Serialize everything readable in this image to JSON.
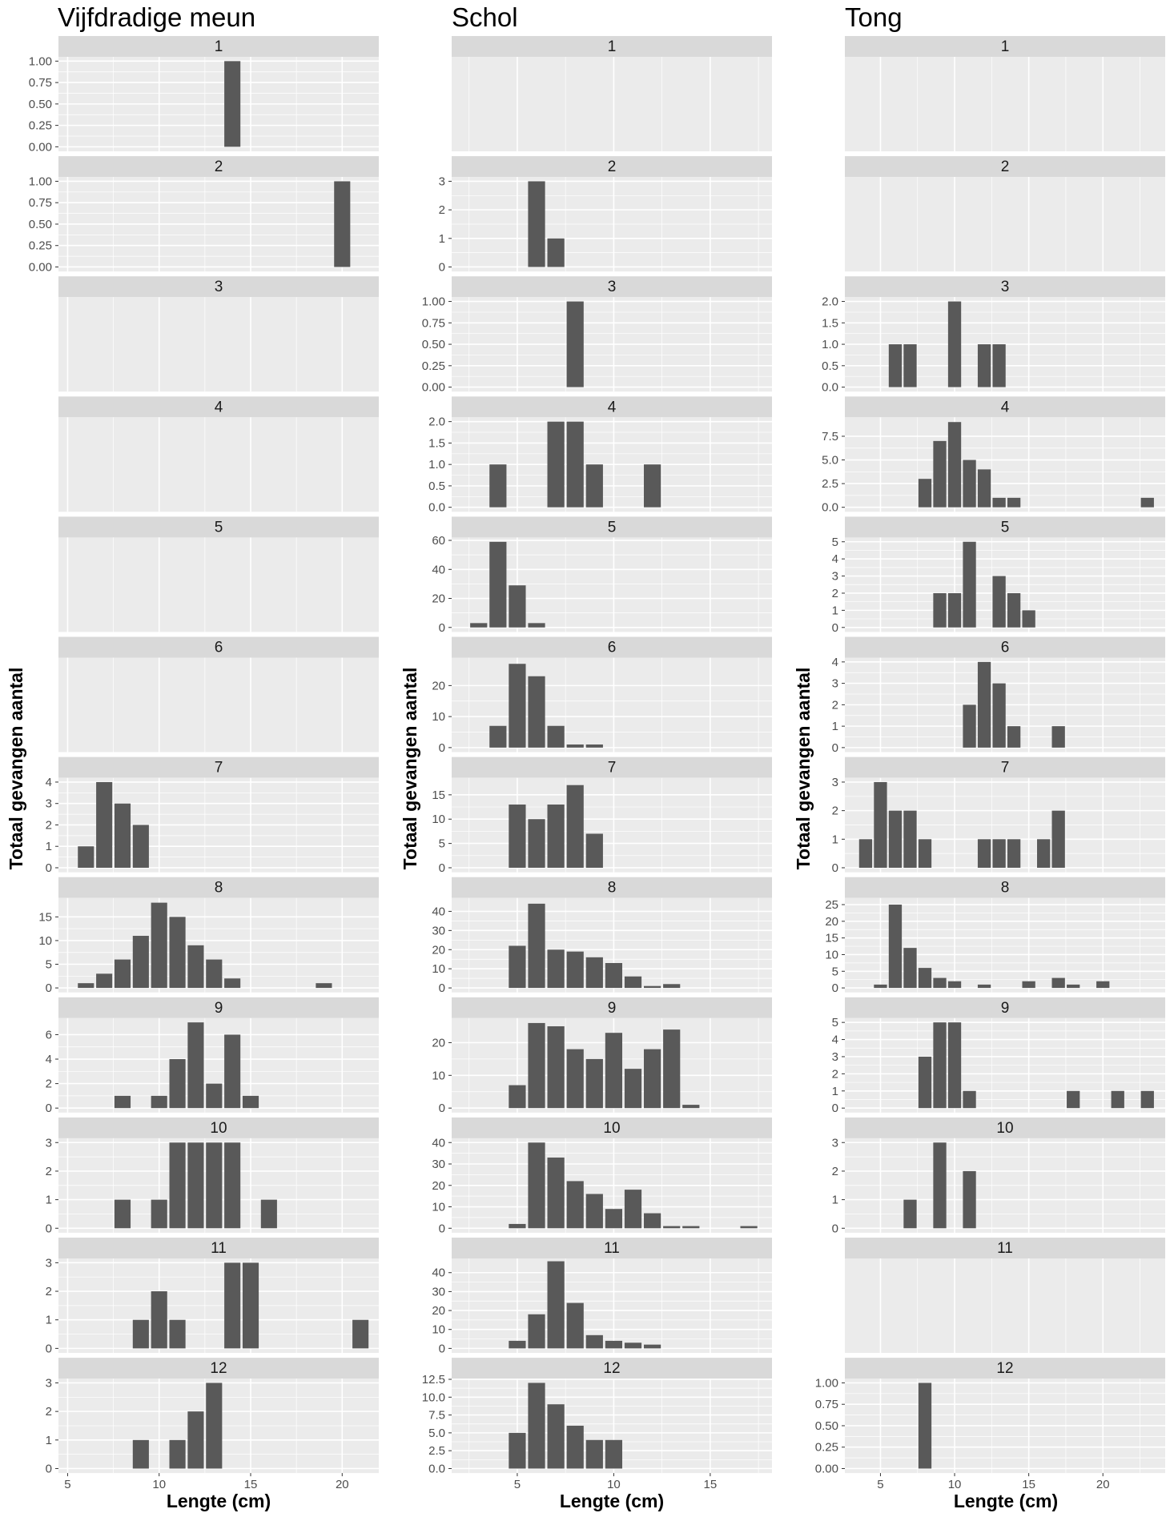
{
  "chart_data": [
    {
      "type": "bar",
      "title": "Vijfdradige meun",
      "xlabel": "Lengte (cm)",
      "ylabel": "Totaal gevangen aantal",
      "xlim": [
        4.5,
        22
      ],
      "xticks": [
        5,
        10,
        15,
        20
      ],
      "facets": [
        {
          "label": "1",
          "yticks": [
            "0.00",
            "0.25",
            "0.50",
            "0.75",
            "1.00"
          ],
          "ymax": 1.05,
          "x": [
            14
          ],
          "values": [
            1
          ]
        },
        {
          "label": "2",
          "yticks": [
            "0.00",
            "0.25",
            "0.50",
            "0.75",
            "1.00"
          ],
          "ymax": 1.05,
          "x": [
            20
          ],
          "values": [
            1
          ]
        },
        {
          "label": "3",
          "yticks": [],
          "ymax": 1,
          "x": [],
          "values": []
        },
        {
          "label": "4",
          "yticks": [],
          "ymax": 1,
          "x": [],
          "values": []
        },
        {
          "label": "5",
          "yticks": [],
          "ymax": 1,
          "x": [],
          "values": []
        },
        {
          "label": "6",
          "yticks": [],
          "ymax": 1,
          "x": [],
          "values": []
        },
        {
          "label": "7",
          "yticks": [
            "0",
            "1",
            "2",
            "3",
            "4"
          ],
          "ymax": 4.2,
          "x": [
            6,
            7,
            8,
            9
          ],
          "values": [
            1,
            4,
            3,
            2
          ]
        },
        {
          "label": "8",
          "yticks": [
            "0",
            "5",
            "10",
            "15"
          ],
          "ymax": 19,
          "x": [
            6,
            7,
            8,
            9,
            10,
            11,
            12,
            13,
            14,
            19
          ],
          "values": [
            1,
            3,
            6,
            11,
            18,
            15,
            9,
            6,
            2,
            1
          ]
        },
        {
          "label": "9",
          "yticks": [
            "0",
            "2",
            "4",
            "6"
          ],
          "ymax": 7.35,
          "x": [
            8,
            10,
            11,
            12,
            13,
            14,
            15
          ],
          "values": [
            1,
            1,
            4,
            7,
            2,
            6,
            1
          ]
        },
        {
          "label": "10",
          "yticks": [
            "0",
            "1",
            "2",
            "3"
          ],
          "ymax": 3.15,
          "x": [
            8,
            10,
            11,
            12,
            13,
            14,
            16
          ],
          "values": [
            1,
            1,
            3,
            3,
            3,
            3,
            1
          ]
        },
        {
          "label": "11",
          "yticks": [
            "0",
            "1",
            "2",
            "3"
          ],
          "ymax": 3.15,
          "x": [
            9,
            10,
            11,
            14,
            15,
            21
          ],
          "values": [
            1,
            2,
            1,
            3,
            3,
            1
          ]
        },
        {
          "label": "12",
          "yticks": [
            "0",
            "1",
            "2",
            "3"
          ],
          "ymax": 3.15,
          "x": [
            9,
            11,
            12,
            13
          ],
          "values": [
            1,
            1,
            2,
            3
          ]
        }
      ]
    },
    {
      "type": "bar",
      "title": "Schol",
      "xlabel": "Lengte (cm)",
      "ylabel": "Totaal gevangen aantal",
      "xlim": [
        1.6,
        18.2
      ],
      "xticks": [
        5,
        10,
        15
      ],
      "facets": [
        {
          "label": "1",
          "yticks": [],
          "ymax": 1,
          "x": [],
          "values": []
        },
        {
          "label": "2",
          "yticks": [
            "0",
            "1",
            "2",
            "3"
          ],
          "ymax": 3.15,
          "x": [
            6,
            7
          ],
          "values": [
            3,
            1
          ]
        },
        {
          "label": "3",
          "yticks": [
            "0.00",
            "0.25",
            "0.50",
            "0.75",
            "1.00"
          ],
          "ymax": 1.05,
          "x": [
            8
          ],
          "values": [
            1
          ]
        },
        {
          "label": "4",
          "yticks": [
            "0.0",
            "0.5",
            "1.0",
            "1.5",
            "2.0"
          ],
          "ymax": 2.1,
          "x": [
            4,
            7,
            8,
            9,
            12
          ],
          "values": [
            1,
            2,
            2,
            1,
            1
          ]
        },
        {
          "label": "5",
          "yticks": [
            "0",
            "20",
            "40",
            "60"
          ],
          "ymax": 62,
          "x": [
            3,
            4,
            5,
            6
          ],
          "values": [
            3,
            59,
            29,
            3
          ]
        },
        {
          "label": "6",
          "yticks": [
            "0",
            "10",
            "20"
          ],
          "ymax": 29,
          "x": [
            4,
            5,
            6,
            7,
            8,
            9
          ],
          "values": [
            7,
            27,
            23,
            7,
            1,
            1
          ]
        },
        {
          "label": "7",
          "yticks": [
            "0",
            "5",
            "10",
            "15"
          ],
          "ymax": 18.5,
          "x": [
            5,
            6,
            7,
            8,
            9
          ],
          "values": [
            13,
            10,
            13,
            17,
            7
          ]
        },
        {
          "label": "8",
          "yticks": [
            "0",
            "10",
            "20",
            "30",
            "40"
          ],
          "ymax": 47,
          "x": [
            5,
            6,
            7,
            8,
            9,
            10,
            11,
            12,
            13
          ],
          "values": [
            22,
            44,
            20,
            19,
            16,
            13,
            6,
            1,
            2
          ]
        },
        {
          "label": "9",
          "yticks": [
            "0",
            "10",
            "20"
          ],
          "ymax": 27.5,
          "x": [
            5,
            6,
            7,
            8,
            9,
            10,
            11,
            12,
            13,
            14
          ],
          "values": [
            7,
            26,
            25,
            18,
            15,
            23,
            12,
            18,
            24,
            1
          ]
        },
        {
          "label": "10",
          "yticks": [
            "0",
            "10",
            "20",
            "30",
            "40"
          ],
          "ymax": 42,
          "x": [
            5,
            6,
            7,
            8,
            9,
            10,
            11,
            12,
            13,
            14,
            17
          ],
          "values": [
            2,
            40,
            33,
            22,
            16,
            9,
            18,
            7,
            1,
            1,
            1
          ]
        },
        {
          "label": "11",
          "yticks": [
            "0",
            "10",
            "20",
            "30",
            "40"
          ],
          "ymax": 47.5,
          "x": [
            5,
            6,
            7,
            8,
            9,
            10,
            11,
            12
          ],
          "values": [
            4,
            18,
            46,
            24,
            7,
            4,
            3,
            2
          ]
        },
        {
          "label": "12",
          "yticks": [
            "0.0",
            "2.5",
            "5.0",
            "7.5",
            "10.0",
            "12.5"
          ],
          "ymax": 12.6,
          "x": [
            5,
            6,
            7,
            8,
            9,
            10
          ],
          "values": [
            5,
            12,
            9,
            6,
            4,
            4
          ]
        }
      ]
    },
    {
      "type": "bar",
      "title": "Tong",
      "xlabel": "Lengte (cm)",
      "ylabel": "Totaal gevangen aantal",
      "xlim": [
        2.6,
        24.2
      ],
      "xticks": [
        5,
        10,
        15,
        20
      ],
      "facets": [
        {
          "label": "1",
          "yticks": [],
          "ymax": 1,
          "x": [],
          "values": []
        },
        {
          "label": "2",
          "yticks": [],
          "ymax": 1,
          "x": [],
          "values": []
        },
        {
          "label": "3",
          "yticks": [
            "0.0",
            "0.5",
            "1.0",
            "1.5",
            "2.0"
          ],
          "ymax": 2.1,
          "x": [
            6,
            7,
            10,
            12,
            13
          ],
          "values": [
            1,
            1,
            2,
            1,
            1
          ]
        },
        {
          "label": "4",
          "yticks": [
            "0.0",
            "2.5",
            "5.0",
            "7.5"
          ],
          "ymax": 9.5,
          "x": [
            8,
            9,
            10,
            11,
            12,
            13,
            14,
            23
          ],
          "values": [
            3,
            7,
            9,
            5,
            4,
            1,
            1,
            1
          ]
        },
        {
          "label": "5",
          "yticks": [
            "0",
            "1",
            "2",
            "3",
            "4",
            "5"
          ],
          "ymax": 5.25,
          "x": [
            9,
            10,
            11,
            13,
            14,
            15
          ],
          "values": [
            2,
            2,
            5,
            3,
            2,
            1
          ]
        },
        {
          "label": "6",
          "yticks": [
            "0",
            "1",
            "2",
            "3",
            "4"
          ],
          "ymax": 4.2,
          "x": [
            11,
            12,
            13,
            14,
            17
          ],
          "values": [
            2,
            4,
            3,
            1,
            1
          ]
        },
        {
          "label": "7",
          "yticks": [
            "0",
            "1",
            "2",
            "3"
          ],
          "ymax": 3.15,
          "x": [
            4,
            5,
            6,
            7,
            8,
            12,
            13,
            14,
            16,
            17
          ],
          "values": [
            1,
            3,
            2,
            2,
            1,
            1,
            1,
            1,
            1,
            2
          ]
        },
        {
          "label": "8",
          "yticks": [
            "0",
            "5",
            "10",
            "15",
            "20",
            "25"
          ],
          "ymax": 27,
          "x": [
            5,
            6,
            7,
            8,
            9,
            10,
            12,
            15,
            17,
            18,
            20
          ],
          "values": [
            1,
            25,
            12,
            6,
            3,
            2,
            1,
            2,
            3,
            1,
            2
          ]
        },
        {
          "label": "9",
          "yticks": [
            "0",
            "1",
            "2",
            "3",
            "4",
            "5"
          ],
          "ymax": 5.25,
          "x": [
            8,
            9,
            10,
            11,
            18,
            21,
            23
          ],
          "values": [
            3,
            5,
            5,
            1,
            1,
            1,
            1
          ]
        },
        {
          "label": "10",
          "yticks": [
            "0",
            "1",
            "2",
            "3"
          ],
          "ymax": 3.15,
          "x": [
            7,
            9,
            11
          ],
          "values": [
            1,
            3,
            2
          ]
        },
        {
          "label": "11",
          "yticks": [],
          "ymax": 1,
          "x": [],
          "values": []
        },
        {
          "label": "12",
          "yticks": [
            "0.00",
            "0.25",
            "0.50",
            "0.75",
            "1.00"
          ],
          "ymax": 1.05,
          "x": [
            8
          ],
          "values": [
            1
          ]
        }
      ]
    }
  ],
  "colors": {
    "bar": "#595959",
    "panel": "#ebebeb",
    "strip": "#d9d9d9",
    "grid": "#ffffff",
    "text": "#000000",
    "tick_text": "#4d4d4d"
  }
}
